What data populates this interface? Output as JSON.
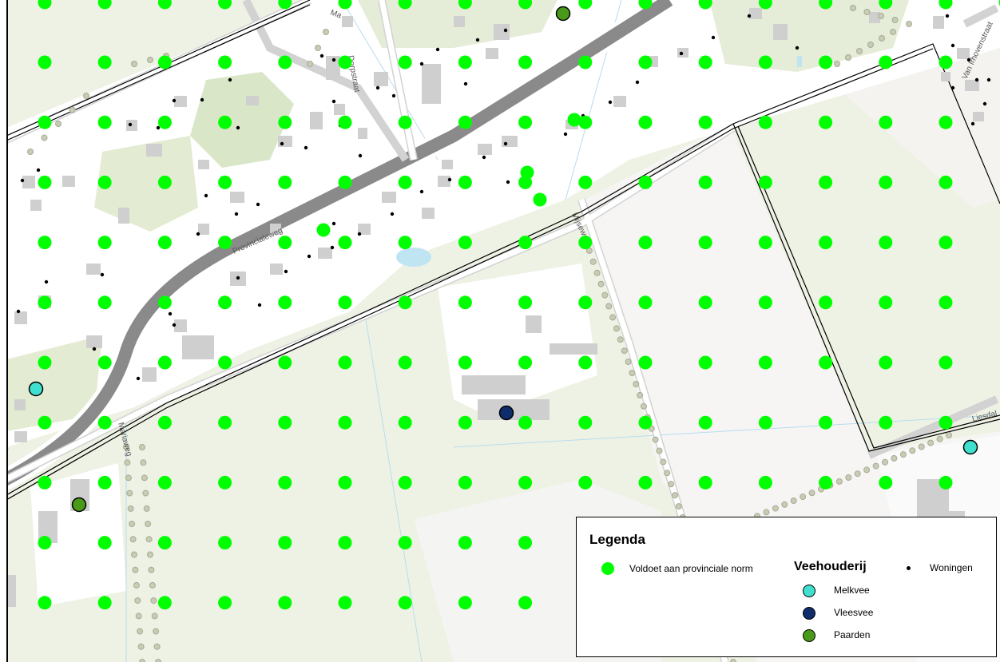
{
  "map": {
    "colors": {
      "field": "#eef2e4",
      "grass": "#e3ebd2",
      "park": "#d9e6c8",
      "yard": "#f6f5f3",
      "main_road": "#8a8a8a",
      "building": "#cfcfcf",
      "water": "#bfe4f2",
      "grid_point": "#00ff00",
      "tree": "#c8ccb5"
    },
    "icons": {
      "grid_point": "green-dot-icon",
      "woning": "black-dot-icon",
      "tree": "tree-dot-icon"
    },
    "street_labels": [
      "Provincialeweg",
      "Mijseweg",
      "Mariaweg",
      "Liesdal",
      "Van Irhovenstraat",
      "Dorpstraat",
      "Ma"
    ]
  },
  "legend": {
    "title": "Legenda",
    "grid_label": "Voldoet aan provinciale norm",
    "veehouderij_title": "Veehouderij",
    "woningen_label": "Woningen",
    "melkvee_label": "Melkvee",
    "vleesvee_label": "Vleesvee",
    "paarden_label": "Paarden",
    "colors": {
      "melkvee": "#40e0d0",
      "vleesvee": "#0f2c6b",
      "paarden": "#4a9a1a",
      "grid": "#00ff00",
      "woningen": "#000000"
    }
  }
}
